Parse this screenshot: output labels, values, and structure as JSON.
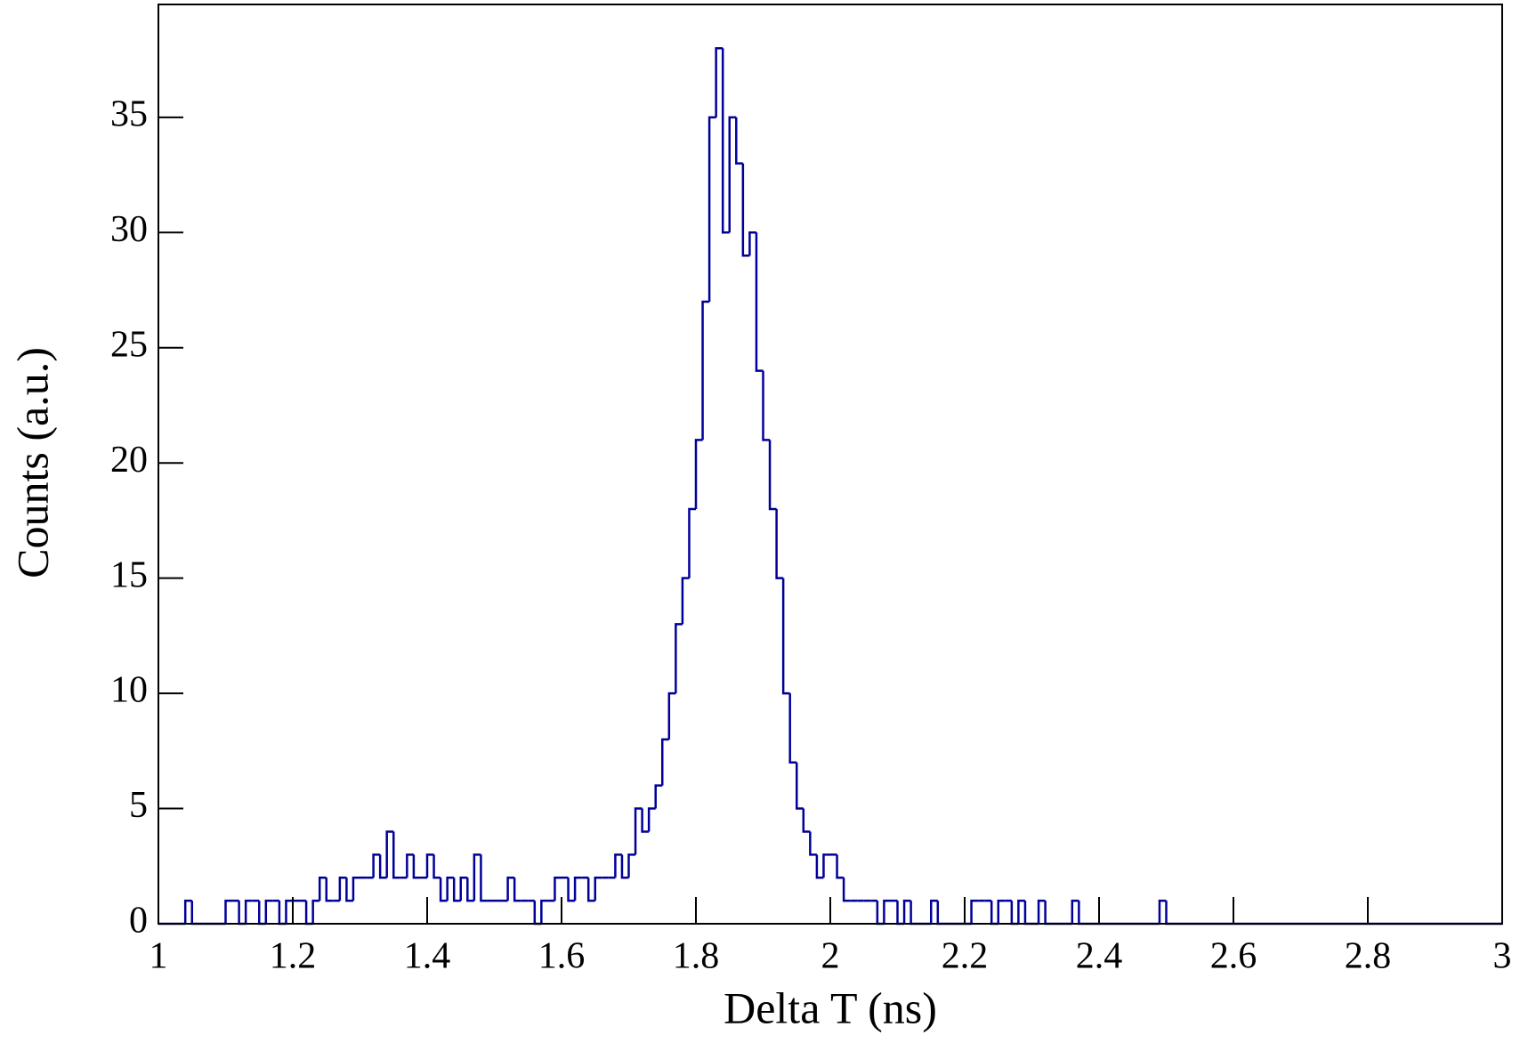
{
  "chart_data": {
    "type": "histogram",
    "xlabel": "Delta T (ns)",
    "ylabel": "Counts (a.u.)",
    "color": "#000099",
    "bins": [
      1.0,
      1.01,
      1.02,
      1.03,
      1.04,
      1.05,
      1.06,
      1.07,
      1.08,
      1.09,
      1.1,
      1.11,
      1.12,
      1.13,
      1.14,
      1.15,
      1.16,
      1.17,
      1.18,
      1.19,
      1.2,
      1.21,
      1.22,
      1.23,
      1.24,
      1.25,
      1.26,
      1.27,
      1.28,
      1.29,
      1.3,
      1.31,
      1.32,
      1.33,
      1.34,
      1.35,
      1.36,
      1.37,
      1.38,
      1.39,
      1.4,
      1.41,
      1.42,
      1.43,
      1.44,
      1.45,
      1.46,
      1.47,
      1.48,
      1.49,
      1.5,
      1.51,
      1.52,
      1.53,
      1.54,
      1.55,
      1.56,
      1.57,
      1.58,
      1.59,
      1.6,
      1.61,
      1.62,
      1.63,
      1.64,
      1.65,
      1.66,
      1.67,
      1.68,
      1.69,
      1.7,
      1.71,
      1.72,
      1.73,
      1.74,
      1.75,
      1.76,
      1.77,
      1.78,
      1.79,
      1.8,
      1.81,
      1.82,
      1.83,
      1.84,
      1.85,
      1.86,
      1.87,
      1.88,
      1.89,
      1.9,
      1.91,
      1.92,
      1.93,
      1.94,
      1.95,
      1.96,
      1.97,
      1.98,
      1.99,
      2.0,
      2.01,
      2.02,
      2.03,
      2.04,
      2.05,
      2.06,
      2.07,
      2.08,
      2.09,
      2.1,
      2.11,
      2.12,
      2.13,
      2.14,
      2.15,
      2.16,
      2.17,
      2.18,
      2.19,
      2.2,
      2.21,
      2.22,
      2.23,
      2.24,
      2.25,
      2.26,
      2.27,
      2.28,
      2.29,
      2.3,
      2.31,
      2.32,
      2.33,
      2.34,
      2.35,
      2.36,
      2.37,
      2.38,
      2.39,
      2.4,
      2.41,
      2.42,
      2.43,
      2.44,
      2.45,
      2.46,
      2.47,
      2.48,
      2.49,
      2.5,
      2.51,
      2.52,
      2.53,
      2.54,
      2.55,
      2.56,
      2.57,
      2.58,
      2.59,
      2.6,
      2.61,
      2.62,
      2.63,
      2.64,
      2.65,
      2.66,
      2.67,
      2.68,
      2.69,
      2.7,
      2.71,
      2.72,
      2.73,
      2.74,
      2.75,
      2.76,
      2.77,
      2.78,
      2.79,
      2.8,
      2.81,
      2.82,
      2.83,
      2.84,
      2.85,
      2.86,
      2.87,
      2.88,
      2.89,
      2.9,
      2.91,
      2.92,
      2.93,
      2.94,
      2.95,
      2.96,
      2.97,
      2.98,
      2.99,
      3.0
    ],
    "values": [
      0,
      0,
      0,
      0,
      1,
      0,
      0,
      0,
      0,
      0,
      1,
      1,
      0,
      1,
      1,
      0,
      1,
      1,
      0,
      1,
      1,
      1,
      0,
      1,
      2,
      1,
      1,
      2,
      1,
      2,
      2,
      2,
      3,
      2,
      4,
      2,
      2,
      3,
      2,
      2,
      3,
      2,
      1,
      2,
      1,
      2,
      1,
      3,
      1,
      1,
      1,
      1,
      2,
      1,
      1,
      1,
      0,
      1,
      1,
      2,
      2,
      1,
      2,
      2,
      1,
      2,
      2,
      2,
      3,
      2,
      3,
      5,
      4,
      5,
      6,
      8,
      10,
      13,
      15,
      18,
      21,
      27,
      35,
      38,
      30,
      35,
      33,
      29,
      30,
      24,
      21,
      18,
      15,
      10,
      7,
      5,
      4,
      3,
      2,
      3,
      3,
      2,
      1,
      1,
      1,
      1,
      1,
      0,
      1,
      1,
      0,
      1,
      0,
      0,
      0,
      1,
      0,
      0,
      0,
      0,
      0,
      1,
      1,
      1,
      0,
      1,
      1,
      0,
      1,
      0,
      0,
      1,
      0,
      0,
      0,
      0,
      1,
      0,
      0,
      0,
      0,
      0,
      0,
      0,
      0,
      0,
      0,
      0,
      0,
      1,
      0,
      0,
      0,
      0,
      0,
      0,
      0,
      0,
      0,
      0,
      0,
      0,
      0,
      0,
      0,
      0,
      0,
      0,
      0,
      0,
      0,
      0,
      0,
      0,
      0,
      0,
      0,
      0,
      0,
      0,
      0,
      0,
      0,
      0,
      0,
      0,
      0,
      0,
      0,
      0,
      0,
      0,
      0,
      0,
      0,
      0,
      0,
      0,
      0,
      0
    ],
    "xlim": [
      1,
      3
    ],
    "xticks": [
      1,
      1.2,
      1.4,
      1.6,
      1.8,
      2,
      2.2,
      2.4,
      2.6,
      2.8,
      3
    ],
    "ylim": [
      0,
      39.9
    ],
    "yticks": [
      0,
      5,
      10,
      15,
      20,
      25,
      30,
      35
    ]
  }
}
